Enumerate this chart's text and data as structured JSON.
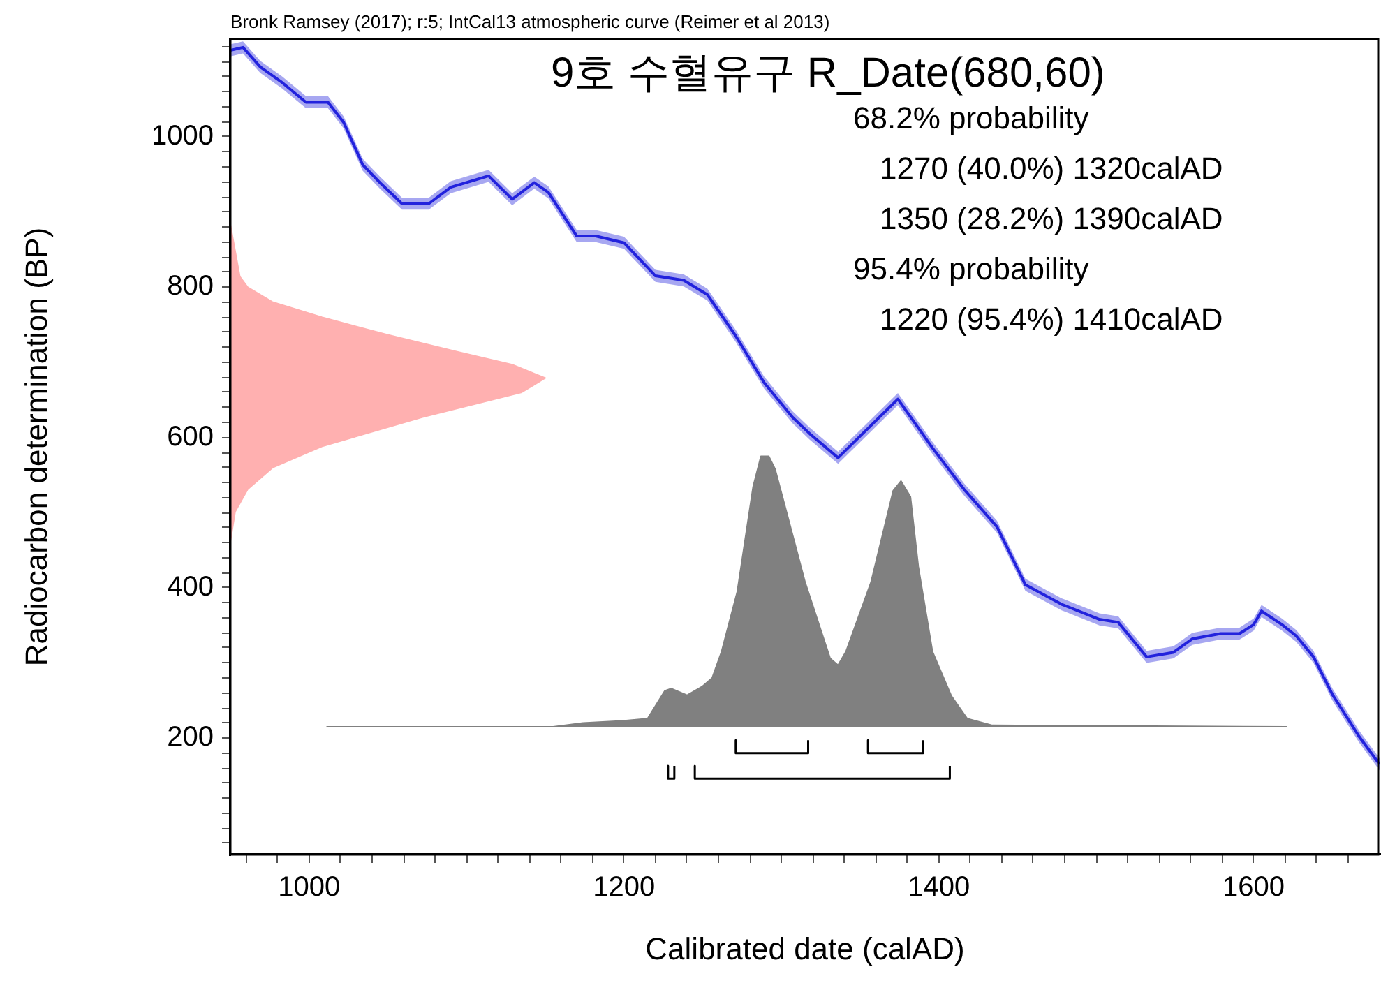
{
  "chart_data": {
    "type": "line",
    "title": "9호 수혈유구 R_Date(680,60)",
    "xlabel": "Calibrated date (calAD)",
    "ylabel": "Radiocarbon determination (BP)",
    "annotations": [
      "Bronk Ramsey (2017); r:5; IntCal13 atmospheric curve (Reimer et al 2013)",
      "68.2% probability",
      "1270 (40.0%) 1320calAD",
      "1350 (28.2%) 1390calAD",
      "95.4% probability",
      "1220 (95.4%) 1410calAD"
    ],
    "xlim": [
      950,
      1680
    ],
    "ylim": [
      45,
      1130
    ],
    "xticks": [
      {
        "value": 960,
        "label": null
      },
      {
        "value": 980,
        "label": null
      },
      1000,
      {
        "value": 1020,
        "label": null
      },
      {
        "value": 1040,
        "label": null
      },
      {
        "value": 1060,
        "label": null
      },
      {
        "value": 1080,
        "label": null
      },
      {
        "value": 1100,
        "label": null
      },
      {
        "value": 1120,
        "label": null
      },
      {
        "value": 1140,
        "label": null
      },
      {
        "value": 1160,
        "label": null
      },
      {
        "value": 1180,
        "label": null
      },
      1200,
      {
        "value": 1220,
        "label": null
      },
      {
        "value": 1240,
        "label": null
      },
      {
        "value": 1260,
        "label": null
      },
      {
        "value": 1280,
        "label": null
      },
      {
        "value": 1300,
        "label": null
      },
      {
        "value": 1320,
        "label": null
      },
      {
        "value": 1340,
        "label": null
      },
      {
        "value": 1360,
        "label": null
      },
      {
        "value": 1380,
        "label": null
      },
      1400,
      {
        "value": 1420,
        "label": null
      },
      {
        "value": 1440,
        "label": null
      },
      {
        "value": 1460,
        "label": null
      },
      {
        "value": 1480,
        "label": null
      },
      {
        "value": 1500,
        "label": null
      },
      {
        "value": 1520,
        "label": null
      },
      {
        "value": 1540,
        "label": null
      },
      {
        "value": 1560,
        "label": null
      },
      {
        "value": 1580,
        "label": null
      },
      1600,
      {
        "value": 1620,
        "label": null
      },
      {
        "value": 1640,
        "label": null
      },
      {
        "value": 1660,
        "label": null
      }
    ],
    "yticks": [
      {
        "value": 60,
        "label": null
      },
      {
        "value": 80,
        "label": null
      },
      {
        "value": 100,
        "label": null
      },
      {
        "value": 120,
        "label": null
      },
      {
        "value": 140,
        "label": null
      },
      {
        "value": 160,
        "label": null
      },
      {
        "value": 180,
        "label": null
      },
      200,
      {
        "value": 220,
        "label": null
      },
      {
        "value": 240,
        "label": null
      },
      {
        "value": 260,
        "label": null
      },
      {
        "value": 280,
        "label": null
      },
      {
        "value": 300,
        "label": null
      },
      {
        "value": 320,
        "label": null
      },
      {
        "value": 340,
        "label": null
      },
      {
        "value": 360,
        "label": null
      },
      {
        "value": 380,
        "label": null
      },
      400,
      {
        "value": 420,
        "label": null
      },
      {
        "value": 440,
        "label": null
      },
      {
        "value": 460,
        "label": null
      },
      {
        "value": 480,
        "label": null
      },
      {
        "value": 500,
        "label": null
      },
      {
        "value": 520,
        "label": null
      },
      {
        "value": 540,
        "label": null
      },
      {
        "value": 560,
        "label": null
      },
      {
        "value": 580,
        "label": null
      },
      600,
      {
        "value": 620,
        "label": null
      },
      {
        "value": 640,
        "label": null
      },
      {
        "value": 660,
        "label": null
      },
      {
        "value": 680,
        "label": null
      },
      {
        "value": 700,
        "label": null
      },
      {
        "value": 720,
        "label": null
      },
      {
        "value": 740,
        "label": null
      },
      {
        "value": 760,
        "label": null
      },
      {
        "value": 780,
        "label": null
      },
      800,
      {
        "value": 820,
        "label": null
      },
      {
        "value": 840,
        "label": null
      },
      {
        "value": 860,
        "label": null
      },
      {
        "value": 880,
        "label": null
      },
      {
        "value": 900,
        "label": null
      },
      {
        "value": 920,
        "label": null
      },
      {
        "value": 940,
        "label": null
      },
      {
        "value": 960,
        "label": null
      },
      {
        "value": 980,
        "label": null
      },
      1000,
      {
        "value": 1020,
        "label": null
      },
      {
        "value": 1040,
        "label": null
      },
      {
        "value": 1060,
        "label": null
      },
      {
        "value": 1080,
        "label": null
      },
      {
        "value": 1100,
        "label": null
      },
      {
        "value": 1120,
        "label": null
      }
    ],
    "grid": false,
    "legend": false,
    "marker": "none",
    "series": [
      {
        "color": "#2222dd",
        "x": [
          950,
          958,
          969,
          983,
          998,
          1012,
          1022,
          1034,
          1045,
          1059,
          1076,
          1090,
          1114,
          1129,
          1143,
          1152,
          1170,
          1182,
          1200,
          1220,
          1238,
          1253,
          1271,
          1289,
          1307,
          1318,
          1336,
          1355,
          1374,
          1396,
          1416,
          1437,
          1455,
          1478,
          1502,
          1514,
          1532,
          1549,
          1561,
          1579,
          1591,
          1600,
          1605,
          1618,
          1627,
          1638,
          1650,
          1667,
          1680
        ],
        "values": [
          1115,
          1119,
          1093,
          1072,
          1046,
          1046,
          1019,
          963,
          939,
          911,
          911,
          933,
          948,
          917,
          939,
          926,
          868,
          868,
          859,
          815,
          809,
          790,
          735,
          673,
          627,
          605,
          573,
          612,
          651,
          586,
          531,
          481,
          404,
          378,
          358,
          354,
          308,
          314,
          332,
          339,
          339,
          351,
          369,
          351,
          336,
          308,
          258,
          202,
          165
        ],
        "lower": [
          1107,
          1111,
          1085,
          1064,
          1038,
          1038,
          1011,
          955,
          931,
          903,
          903,
          925,
          940,
          909,
          931,
          918,
          860,
          860,
          851,
          807,
          801,
          782,
          727,
          665,
          619,
          597,
          565,
          604,
          643,
          578,
          523,
          473,
          396,
          370,
          350,
          346,
          300,
          306,
          324,
          331,
          331,
          343,
          361,
          343,
          328,
          300,
          250,
          194,
          157
        ],
        "upper": [
          1123,
          1127,
          1101,
          1080,
          1054,
          1054,
          1027,
          971,
          947,
          919,
          919,
          941,
          956,
          925,
          947,
          934,
          876,
          876,
          867,
          823,
          817,
          798,
          743,
          681,
          635,
          613,
          581,
          620,
          659,
          594,
          539,
          489,
          412,
          386,
          366,
          362,
          316,
          322,
          340,
          347,
          347,
          359,
          377,
          359,
          344,
          316,
          266,
          210,
          173
        ]
      },
      {
        "type": "area",
        "color": "#ffb0b0",
        "x": [
          950,
          956,
          961,
          977,
          1008,
          1049,
          1094,
          1129,
          1150,
          1135,
          1072,
          1008,
          977,
          961,
          953,
          950
        ],
        "values": [
          883,
          814,
          800,
          780,
          760,
          737,
          714,
          697,
          679,
          660,
          627,
          588,
          560,
          531,
          501,
          462
        ]
      },
      {
        "type": "area",
        "color": "#808080",
        "x": [
          1011,
          1155,
          1174,
          1199,
          1215,
          1226,
          1230,
          1240,
          1250,
          1256,
          1262,
          1272,
          1282,
          1287,
          1292,
          1296,
          1304,
          1315,
          1331,
          1336,
          1341,
          1357,
          1371,
          1376,
          1382,
          1387,
          1396,
          1408,
          1418,
          1434,
          1621
        ],
        "values": [
          215,
          215,
          220,
          223,
          226,
          263,
          266,
          257,
          269,
          280,
          315,
          395,
          534,
          575,
          575,
          558,
          495,
          408,
          306,
          297,
          315,
          408,
          529,
          542,
          521,
          428,
          315,
          256,
          226,
          217,
          215
        ]
      },
      {
        "color": "#000000",
        "x": [
          1271,
          1271,
          1317,
          1317
        ],
        "values": [
          197,
          180,
          180,
          197
        ]
      },
      {
        "color": "#000000",
        "x": [
          1355,
          1355,
          1390,
          1390
        ],
        "values": [
          197,
          180,
          180,
          197
        ]
      },
      {
        "color": "#000000",
        "x": [
          1228,
          1228,
          1232,
          1232
        ],
        "values": [
          163,
          146,
          146,
          163
        ]
      },
      {
        "color": "#000000",
        "x": [
          1245,
          1245,
          1407,
          1407
        ],
        "values": [
          163,
          146,
          146,
          163
        ]
      }
    ]
  }
}
